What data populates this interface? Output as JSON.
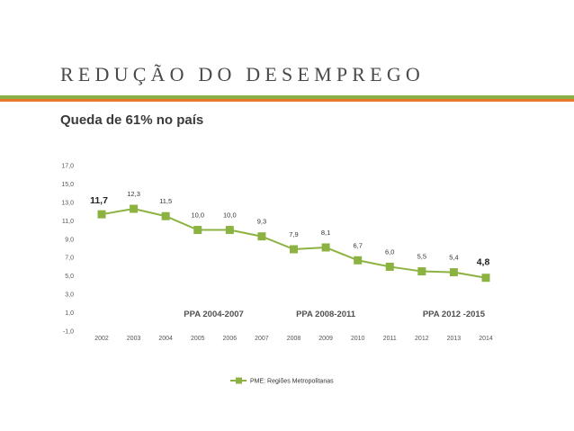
{
  "slide": {
    "title": "REDUÇÃO DO DESEMPREGO",
    "subtitle": "Queda de 61% no país"
  },
  "colors": {
    "accent_green": "#8aae48",
    "accent_orange": "#e8782a",
    "series": "#8cb342"
  },
  "chart_data": {
    "type": "line",
    "title": "",
    "xlabel": "",
    "ylabel": "",
    "categories": [
      "2002",
      "2003",
      "2004",
      "2005",
      "2006",
      "2007",
      "2008",
      "2009",
      "2010",
      "2011",
      "2012",
      "2013",
      "2014"
    ],
    "series": [
      {
        "name": "PME: Regiões Metropolitanas",
        "values": [
          11.7,
          12.3,
          11.5,
          10.0,
          10.0,
          9.3,
          7.9,
          8.1,
          6.7,
          6.0,
          5.5,
          5.4,
          4.8
        ],
        "labels": [
          "11,7",
          "12,3",
          "11,5",
          "10,0",
          "10,0",
          "9,3",
          "7,9",
          "8,1",
          "6,7",
          "6,0",
          "5,5",
          "5,4",
          "4,8"
        ]
      }
    ],
    "highlighted_labels": [
      0,
      12
    ],
    "ylim": [
      -1,
      17
    ],
    "yticks": [
      -1,
      1,
      3,
      5,
      7,
      9,
      11,
      13,
      15,
      17
    ],
    "ytick_labels": [
      "-1,0",
      "1,0",
      "3,0",
      "5,0",
      "7,0",
      "9,0",
      "11,0",
      "13,0",
      "15,0",
      "17,0"
    ],
    "grid": false,
    "legend_position": "bottom",
    "annotations": [
      {
        "text": "PPA 2004-2007",
        "x_from": "2005",
        "x_to": "2006"
      },
      {
        "text": "PPA 2008-2011",
        "x_from": "2008",
        "x_to": "2010"
      },
      {
        "text": "PPA 2012 -2015",
        "x_from": "2012",
        "x_to": "2014"
      }
    ]
  }
}
